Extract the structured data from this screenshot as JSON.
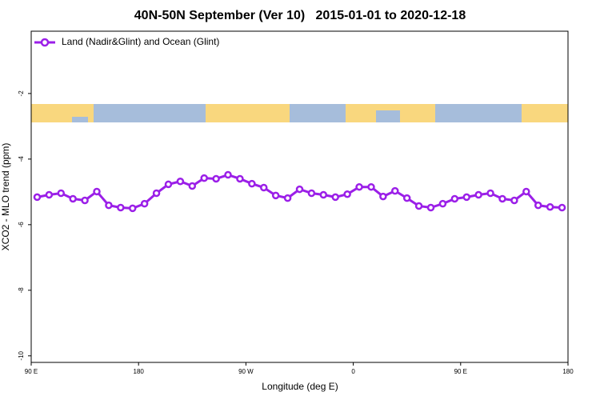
{
  "chart_data": {
    "type": "line",
    "title": "40N-50N September (Ver 10)   2015-01-01 to 2020-12-18",
    "x_label": "Longitude (deg E)",
    "y_label": "XCO2 - MLO trend (ppm)",
    "xlim": [
      90,
      540
    ],
    "xticks": [
      {
        "value": 90,
        "label": "90 E"
      },
      {
        "value": 180,
        "label": "180"
      },
      {
        "value": 270,
        "label": "90 W"
      },
      {
        "value": 360,
        "label": "0"
      },
      {
        "value": 450,
        "label": "90 E"
      },
      {
        "value": 540,
        "label": "180"
      }
    ],
    "ylim": [
      -10.2,
      -0.1
    ],
    "yticks": [
      -10,
      -8,
      -6,
      -4,
      -2
    ],
    "x": [
      95,
      105,
      115,
      125,
      135,
      145,
      155,
      165,
      175,
      185,
      195,
      205,
      215,
      225,
      235,
      245,
      255,
      265,
      275,
      285,
      295,
      305,
      315,
      325,
      335,
      345,
      355,
      365,
      375,
      385,
      395,
      405,
      415,
      425,
      435,
      445,
      455,
      465,
      475,
      485,
      495,
      505,
      515,
      525,
      535
    ],
    "series": [
      {
        "name": "Land (Nadir&Glint) and Ocean (Glint)",
        "color": "#9b1fe8",
        "values": [
          -5.16,
          -5.09,
          -5.04,
          -5.21,
          -5.26,
          -4.99,
          -5.41,
          -5.48,
          -5.5,
          -5.36,
          -5.04,
          -4.77,
          -4.68,
          -4.82,
          -4.58,
          -4.6,
          -4.48,
          -4.6,
          -4.75,
          -4.87,
          -5.11,
          -5.19,
          -4.92,
          -5.04,
          -5.09,
          -5.16,
          -5.07,
          -4.85,
          -4.85,
          -5.14,
          -4.97,
          -5.19,
          -5.43,
          -5.48,
          -5.36,
          -5.21,
          -5.16,
          -5.09,
          -5.04,
          -5.21,
          -5.26,
          -4.99,
          -5.41,
          -5.46,
          -5.48
        ]
      }
    ],
    "legend": "upper left"
  }
}
